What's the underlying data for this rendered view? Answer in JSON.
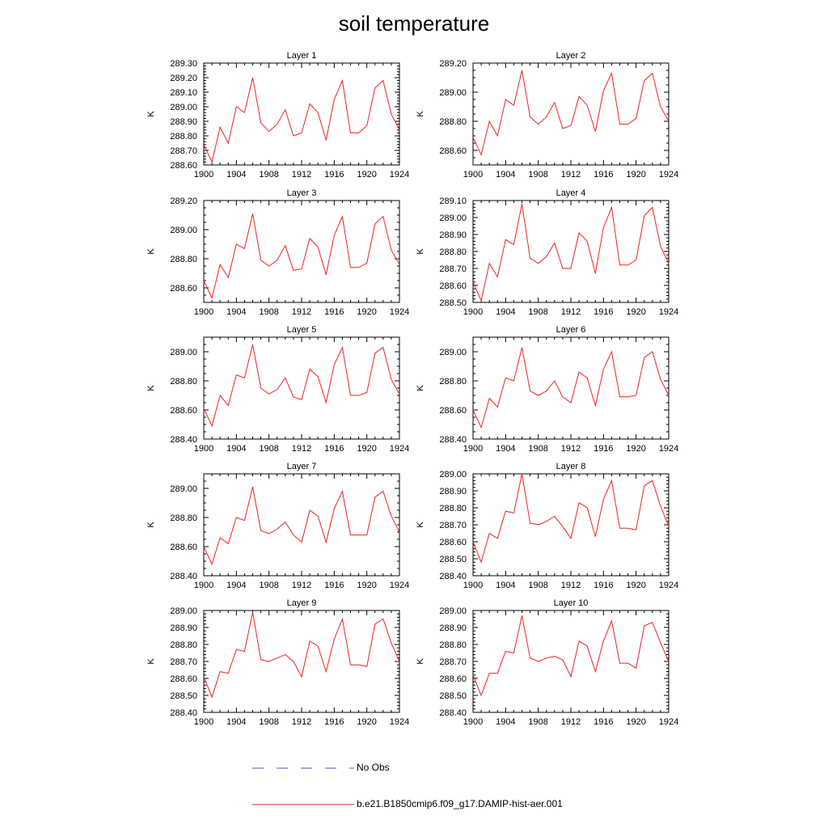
{
  "title": "soil temperature",
  "legend": [
    {
      "label": "No Obs",
      "color": "#5555bb",
      "style": "dashed"
    },
    {
      "label": "b.e21.B1850cmip6.f09_g17.DAMIP-hist-aer.001",
      "color": "#ee2222",
      "style": "solid"
    }
  ],
  "chart_data": [
    {
      "type": "line",
      "title": "Layer 1",
      "ylabel": "K",
      "xlim": [
        1900,
        1924
      ],
      "ylim": [
        288.6,
        289.3
      ],
      "xticks": [
        1900,
        1904,
        1908,
        1912,
        1916,
        1920,
        1924
      ],
      "yticks": [
        "288.60",
        "288.70",
        "288.80",
        "288.90",
        "289.00",
        "289.10",
        "289.20",
        "289.30"
      ],
      "x": [
        1900,
        1901,
        1902,
        1903,
        1904,
        1905,
        1906,
        1907,
        1908,
        1909,
        1910,
        1911,
        1912,
        1913,
        1914,
        1915,
        1916,
        1917,
        1918,
        1919,
        1920,
        1921,
        1922,
        1923,
        1924
      ],
      "series": [
        {
          "name": "b.e21.B1850cmip6.f09_g17.DAMIP-hist-aer.001",
          "color": "#ee2222",
          "values": [
            288.74,
            288.62,
            288.86,
            288.75,
            289.0,
            288.96,
            289.2,
            288.89,
            288.83,
            288.88,
            288.98,
            288.8,
            288.82,
            289.02,
            288.96,
            288.77,
            289.05,
            289.18,
            288.82,
            288.82,
            288.87,
            289.13,
            289.18,
            288.95,
            288.84
          ]
        }
      ]
    },
    {
      "type": "line",
      "title": "Layer 2",
      "ylabel": "K",
      "xlim": [
        1900,
        1924
      ],
      "ylim": [
        288.5,
        289.2
      ],
      "xticks": [
        1900,
        1904,
        1908,
        1912,
        1916,
        1920,
        1924
      ],
      "yticks": [
        "288.60",
        "288.80",
        "289.00",
        "289.20"
      ],
      "x": [
        1900,
        1901,
        1902,
        1903,
        1904,
        1905,
        1906,
        1907,
        1908,
        1909,
        1910,
        1911,
        1912,
        1913,
        1914,
        1915,
        1916,
        1917,
        1918,
        1919,
        1920,
        1921,
        1922,
        1923,
        1924
      ],
      "series": [
        {
          "name": "b.e21.B1850cmip6.f09_g17.DAMIP-hist-aer.001",
          "color": "#ee2222",
          "values": [
            288.69,
            288.57,
            288.8,
            288.7,
            288.95,
            288.91,
            289.15,
            288.83,
            288.78,
            288.83,
            288.93,
            288.75,
            288.77,
            288.97,
            288.91,
            288.73,
            289.01,
            289.13,
            288.78,
            288.78,
            288.82,
            289.08,
            289.13,
            288.9,
            288.8
          ]
        }
      ]
    },
    {
      "type": "line",
      "title": "Layer 3",
      "ylabel": "K",
      "xlim": [
        1900,
        1924
      ],
      "ylim": [
        288.5,
        289.2
      ],
      "xticks": [
        1900,
        1904,
        1908,
        1912,
        1916,
        1920,
        1924
      ],
      "yticks": [
        "288.60",
        "288.80",
        "289.00",
        "289.20"
      ],
      "x": [
        1900,
        1901,
        1902,
        1903,
        1904,
        1905,
        1906,
        1907,
        1908,
        1909,
        1910,
        1911,
        1912,
        1913,
        1914,
        1915,
        1916,
        1917,
        1918,
        1919,
        1920,
        1921,
        1922,
        1923,
        1924
      ],
      "series": [
        {
          "name": "b.e21.B1850cmip6.f09_g17.DAMIP-hist-aer.001",
          "color": "#ee2222",
          "values": [
            288.65,
            288.53,
            288.76,
            288.67,
            288.9,
            288.87,
            289.11,
            288.79,
            288.75,
            288.79,
            288.89,
            288.72,
            288.73,
            288.94,
            288.88,
            288.69,
            288.96,
            289.09,
            288.74,
            288.74,
            288.77,
            289.04,
            289.09,
            288.86,
            288.76
          ]
        }
      ]
    },
    {
      "type": "line",
      "title": "Layer 4",
      "ylabel": "K",
      "xlim": [
        1900,
        1924
      ],
      "ylim": [
        288.5,
        289.1
      ],
      "xticks": [
        1900,
        1904,
        1908,
        1912,
        1916,
        1920,
        1924
      ],
      "yticks": [
        "288.50",
        "288.60",
        "288.70",
        "288.80",
        "288.90",
        "289.00",
        "289.10"
      ],
      "x": [
        1900,
        1901,
        1902,
        1903,
        1904,
        1905,
        1906,
        1907,
        1908,
        1909,
        1910,
        1911,
        1912,
        1913,
        1914,
        1915,
        1916,
        1917,
        1918,
        1919,
        1920,
        1921,
        1922,
        1923,
        1924
      ],
      "series": [
        {
          "name": "b.e21.B1850cmip6.f09_g17.DAMIP-hist-aer.001",
          "color": "#ee2222",
          "values": [
            288.62,
            288.51,
            288.73,
            288.65,
            288.87,
            288.84,
            289.08,
            288.76,
            288.73,
            288.77,
            288.85,
            288.7,
            288.7,
            288.91,
            288.86,
            288.67,
            288.94,
            289.06,
            288.72,
            288.72,
            288.75,
            289.01,
            289.06,
            288.83,
            288.73
          ]
        }
      ]
    },
    {
      "type": "line",
      "title": "Layer 5",
      "ylabel": "K",
      "xlim": [
        1900,
        1924
      ],
      "ylim": [
        288.4,
        289.1
      ],
      "xticks": [
        1900,
        1904,
        1908,
        1912,
        1916,
        1920,
        1924
      ],
      "yticks": [
        "288.40",
        "288.60",
        "288.80",
        "289.00"
      ],
      "x": [
        1900,
        1901,
        1902,
        1903,
        1904,
        1905,
        1906,
        1907,
        1908,
        1909,
        1910,
        1911,
        1912,
        1913,
        1914,
        1915,
        1916,
        1917,
        1918,
        1919,
        1920,
        1921,
        1922,
        1923,
        1924
      ],
      "series": [
        {
          "name": "b.e21.B1850cmip6.f09_g17.DAMIP-hist-aer.001",
          "color": "#ee2222",
          "values": [
            288.61,
            288.49,
            288.7,
            288.63,
            288.84,
            288.82,
            289.05,
            288.75,
            288.71,
            288.74,
            288.82,
            288.69,
            288.67,
            288.88,
            288.83,
            288.65,
            288.91,
            289.03,
            288.7,
            288.7,
            288.72,
            288.99,
            289.03,
            288.81,
            288.71
          ]
        }
      ]
    },
    {
      "type": "line",
      "title": "Layer 6",
      "ylabel": "K",
      "xlim": [
        1900,
        1924
      ],
      "ylim": [
        288.4,
        289.1
      ],
      "xticks": [
        1900,
        1904,
        1908,
        1912,
        1916,
        1920,
        1924
      ],
      "yticks": [
        "288.40",
        "288.60",
        "288.80",
        "289.00"
      ],
      "x": [
        1900,
        1901,
        1902,
        1903,
        1904,
        1905,
        1906,
        1907,
        1908,
        1909,
        1910,
        1911,
        1912,
        1913,
        1914,
        1915,
        1916,
        1917,
        1918,
        1919,
        1920,
        1921,
        1922,
        1923,
        1924
      ],
      "series": [
        {
          "name": "b.e21.B1850cmip6.f09_g17.DAMIP-hist-aer.001",
          "color": "#ee2222",
          "values": [
            288.6,
            288.48,
            288.68,
            288.62,
            288.82,
            288.8,
            289.03,
            288.73,
            288.7,
            288.73,
            288.8,
            288.69,
            288.65,
            288.86,
            288.82,
            288.63,
            288.88,
            289.0,
            288.69,
            288.69,
            288.7,
            288.96,
            289.0,
            288.81,
            288.7
          ]
        }
      ]
    },
    {
      "type": "line",
      "title": "Layer 7",
      "ylabel": "K",
      "xlim": [
        1900,
        1924
      ],
      "ylim": [
        288.4,
        289.1
      ],
      "xticks": [
        1900,
        1904,
        1908,
        1912,
        1916,
        1920,
        1924
      ],
      "yticks": [
        "288.40",
        "288.60",
        "288.80",
        "289.00"
      ],
      "x": [
        1900,
        1901,
        1902,
        1903,
        1904,
        1905,
        1906,
        1907,
        1908,
        1909,
        1910,
        1911,
        1912,
        1913,
        1914,
        1915,
        1916,
        1917,
        1918,
        1919,
        1920,
        1921,
        1922,
        1923,
        1924
      ],
      "series": [
        {
          "name": "b.e21.B1850cmip6.f09_g17.DAMIP-hist-aer.001",
          "color": "#ee2222",
          "values": [
            288.6,
            288.48,
            288.66,
            288.62,
            288.8,
            288.78,
            289.01,
            288.71,
            288.69,
            288.72,
            288.77,
            288.68,
            288.63,
            288.85,
            288.81,
            288.63,
            288.86,
            288.98,
            288.68,
            288.68,
            288.68,
            288.94,
            288.98,
            288.81,
            288.7
          ]
        }
      ]
    },
    {
      "type": "line",
      "title": "Layer 8",
      "ylabel": "K",
      "xlim": [
        1900,
        1924
      ],
      "ylim": [
        288.4,
        289.0
      ],
      "xticks": [
        1900,
        1904,
        1908,
        1912,
        1916,
        1920,
        1924
      ],
      "yticks": [
        "288.40",
        "288.50",
        "288.60",
        "288.70",
        "288.80",
        "288.90",
        "289.00"
      ],
      "x": [
        1900,
        1901,
        1902,
        1903,
        1904,
        1905,
        1906,
        1907,
        1908,
        1909,
        1910,
        1911,
        1912,
        1913,
        1914,
        1915,
        1916,
        1917,
        1918,
        1919,
        1920,
        1921,
        1922,
        1923,
        1924
      ],
      "series": [
        {
          "name": "b.e21.B1850cmip6.f09_g17.DAMIP-hist-aer.001",
          "color": "#ee2222",
          "values": [
            288.6,
            288.48,
            288.65,
            288.62,
            288.78,
            288.77,
            289.0,
            288.71,
            288.7,
            288.72,
            288.75,
            288.69,
            288.62,
            288.83,
            288.8,
            288.63,
            288.85,
            288.96,
            288.68,
            288.68,
            288.67,
            288.93,
            288.96,
            288.81,
            288.69
          ]
        }
      ]
    },
    {
      "type": "line",
      "title": "Layer 9",
      "ylabel": "K",
      "xlim": [
        1900,
        1924
      ],
      "ylim": [
        288.4,
        289.0
      ],
      "xticks": [
        1900,
        1904,
        1908,
        1912,
        1916,
        1920,
        1924
      ],
      "yticks": [
        "288.40",
        "288.50",
        "288.60",
        "288.70",
        "288.80",
        "288.90",
        "289.00"
      ],
      "x": [
        1900,
        1901,
        1902,
        1903,
        1904,
        1905,
        1906,
        1907,
        1908,
        1909,
        1910,
        1911,
        1912,
        1913,
        1914,
        1915,
        1916,
        1917,
        1918,
        1919,
        1920,
        1921,
        1922,
        1923,
        1924
      ],
      "series": [
        {
          "name": "b.e21.B1850cmip6.f09_g17.DAMIP-hist-aer.001",
          "color": "#ee2222",
          "values": [
            288.61,
            288.49,
            288.64,
            288.63,
            288.77,
            288.76,
            288.99,
            288.71,
            288.7,
            288.72,
            288.74,
            288.7,
            288.61,
            288.82,
            288.79,
            288.64,
            288.83,
            288.95,
            288.68,
            288.68,
            288.67,
            288.92,
            288.95,
            288.81,
            288.7
          ]
        }
      ]
    },
    {
      "type": "line",
      "title": "Layer 10",
      "ylabel": "K",
      "xlim": [
        1900,
        1924
      ],
      "ylim": [
        288.4,
        289.0
      ],
      "xticks": [
        1900,
        1904,
        1908,
        1912,
        1916,
        1920,
        1924
      ],
      "yticks": [
        "288.40",
        "288.50",
        "288.60",
        "288.70",
        "288.80",
        "288.90",
        "289.00"
      ],
      "x": [
        1900,
        1901,
        1902,
        1903,
        1904,
        1905,
        1906,
        1907,
        1908,
        1909,
        1910,
        1911,
        1912,
        1913,
        1914,
        1915,
        1916,
        1917,
        1918,
        1919,
        1920,
        1921,
        1922,
        1923,
        1924
      ],
      "series": [
        {
          "name": "b.e21.B1850cmip6.f09_g17.DAMIP-hist-aer.001",
          "color": "#ee2222",
          "values": [
            288.62,
            288.5,
            288.63,
            288.63,
            288.76,
            288.75,
            288.97,
            288.72,
            288.7,
            288.72,
            288.73,
            288.71,
            288.61,
            288.82,
            288.79,
            288.64,
            288.82,
            288.94,
            288.69,
            288.69,
            288.66,
            288.91,
            288.93,
            288.81,
            288.7
          ]
        }
      ]
    }
  ]
}
